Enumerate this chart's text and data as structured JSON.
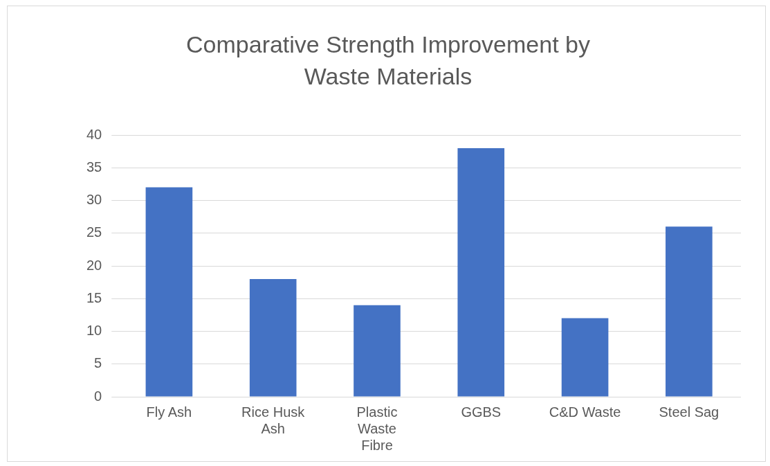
{
  "chart_data": {
    "type": "bar",
    "title": "Comparative Strength Improvement by Waste Materials",
    "categories": [
      "Fly Ash",
      "Rice Husk Ash",
      "Plastic Waste Fibre",
      "GGBS",
      "C&D Waste",
      "Steel Sag"
    ],
    "values": [
      32,
      18,
      14,
      38,
      12,
      26
    ],
    "color": "#4472c4",
    "ylim": [
      0,
      40
    ],
    "yticks": [
      0,
      5,
      10,
      15,
      20,
      25,
      30,
      35,
      40
    ],
    "grid": "y"
  }
}
